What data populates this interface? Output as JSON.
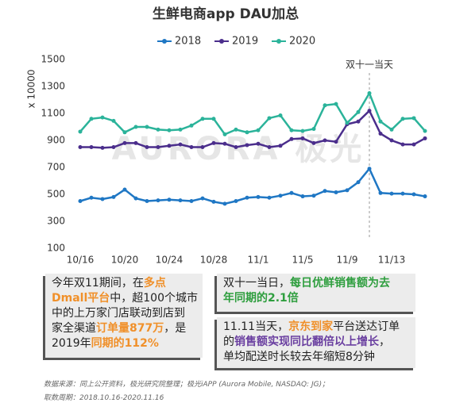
{
  "chart_data": {
    "type": "line",
    "title": "生鲜电商app DAU加总",
    "ylabel": "x 10000",
    "categories": [
      "10/16",
      null,
      null,
      null,
      "10/20",
      null,
      null,
      null,
      "10/24",
      null,
      null,
      null,
      "10/28",
      null,
      null,
      null,
      "11/1",
      null,
      null,
      null,
      "11/5",
      null,
      null,
      null,
      "11/9",
      null,
      null,
      null,
      "11/13",
      null,
      null,
      null
    ],
    "series": [
      {
        "name": "2018",
        "color": "#1f77c4",
        "values": [
          450,
          475,
          465,
          480,
          535,
          470,
          450,
          455,
          460,
          455,
          450,
          470,
          445,
          430,
          450,
          475,
          480,
          475,
          490,
          510,
          485,
          490,
          525,
          515,
          530,
          590,
          690,
          510,
          505,
          505,
          500,
          485
        ]
      },
      {
        "name": "2019",
        "color": "#4b2e8c",
        "values": [
          850,
          850,
          845,
          850,
          880,
          880,
          850,
          850,
          860,
          870,
          850,
          850,
          880,
          875,
          850,
          865,
          875,
          850,
          860,
          910,
          915,
          880,
          900,
          890,
          1020,
          1040,
          1120,
          950,
          900,
          870,
          870,
          915
        ]
      },
      {
        "name": "2020",
        "color": "#2bb39a",
        "values": [
          965,
          1060,
          1070,
          1045,
          960,
          1000,
          1000,
          980,
          975,
          980,
          1010,
          1060,
          1060,
          945,
          980,
          960,
          975,
          1065,
          1085,
          975,
          970,
          985,
          1160,
          1170,
          1030,
          1110,
          1250,
          1040,
          980,
          1060,
          1065,
          970
        ]
      }
    ],
    "ylim": [
      100,
      1500
    ],
    "yticks": [
      100,
      300,
      500,
      700,
      900,
      1100,
      1300,
      1500
    ],
    "grid": false,
    "annotation": "双十一当天",
    "watermark": "AURORA 极光"
  },
  "boxes": [
    {
      "lines": [
        [
          {
            "text": "今年双11期间，在"
          },
          {
            "text": "多点",
            "color": "#f0902a"
          }
        ],
        [
          {
            "text": "Dmall平台",
            "color": "#f0902a"
          },
          {
            "text": "中，超100个城市"
          }
        ],
        [
          {
            "text": "中的上万家门店联动到店到"
          }
        ],
        [
          {
            "text": "家全渠道"
          },
          {
            "text": "订单量877万",
            "color": "#f0902a"
          },
          {
            "text": "，是"
          }
        ],
        [
          {
            "text": "2019年"
          },
          {
            "text": "同期的112%",
            "color": "#f0902a"
          }
        ]
      ]
    },
    {
      "lines": [
        [
          {
            "text": "双十一当日，"
          },
          {
            "text": "每日优鲜销售额为去",
            "color": "#2e9e3e"
          }
        ],
        [
          {
            "text": "年同期的2.1倍",
            "color": "#2e9e3e"
          }
        ]
      ]
    },
    {
      "lines": [
        [
          {
            "text": "11.11当天，"
          },
          {
            "text": "京东到家",
            "color": "#f0902a"
          },
          {
            "text": "平台送达订单"
          }
        ],
        [
          {
            "text": "的"
          },
          {
            "text": "销售额实现同比翻倍以上增长",
            "color": "#6a3fa0"
          },
          {
            "text": "，"
          }
        ],
        [
          {
            "text": "单均配送时长较去年缩短8分钟"
          }
        ]
      ]
    }
  ],
  "footer": [
    "数据来源：同上公开资料，极光研究院整理；极光iAPP (Aurora Mobile, NASDAQ: JG)；",
    "取数周期：2018.10.16-2020.11.16"
  ]
}
